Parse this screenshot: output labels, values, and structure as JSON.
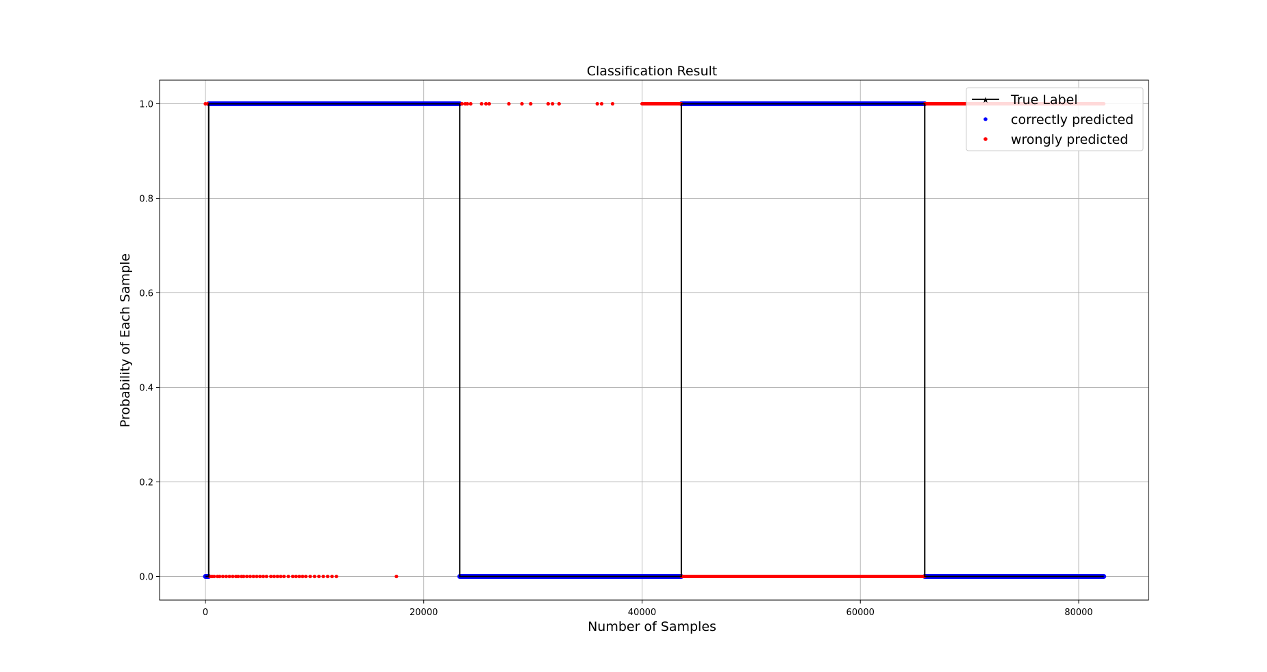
{
  "chart_data": {
    "type": "scatter",
    "title": "Classification Result",
    "xlabel": "Number of Samples",
    "ylabel": "Probability of Each Sample",
    "xlim": [
      -4200,
      86400
    ],
    "ylim": [
      -0.05,
      1.05
    ],
    "grid": true,
    "legend_position": "top-right",
    "xticks": [
      0,
      20000,
      40000,
      60000,
      80000
    ],
    "xtick_labels": [
      "0",
      "20000",
      "40000",
      "60000",
      "80000"
    ],
    "yticks": [
      0.0,
      0.2,
      0.4,
      0.6,
      0.8,
      1.0
    ],
    "ytick_labels": [
      "0.0",
      "0.2",
      "0.4",
      "0.6",
      "0.8",
      "1.0"
    ],
    "legend": [
      {
        "label": "True Label",
        "color": "#000000",
        "marker": "line-star"
      },
      {
        "label": "correctly predicted",
        "color": "#0000ff",
        "marker": "dot"
      },
      {
        "label": "wrongly predicted",
        "color": "#ff0000",
        "marker": "dot"
      }
    ],
    "series": [
      {
        "name": "True Label",
        "color": "#000000",
        "kind": "step-line",
        "x": [
          0,
          300,
          300,
          23300,
          23300,
          43600,
          43600,
          65900,
          65900,
          82300
        ],
        "y": [
          0,
          0,
          1,
          1,
          0,
          0,
          1,
          1,
          0,
          0
        ]
      },
      {
        "name": "correctly predicted",
        "color": "#0000ff",
        "kind": "dense-band",
        "segments": [
          {
            "x_start": 0,
            "x_end": 300,
            "y": 0
          },
          {
            "x_start": 300,
            "x_end": 23300,
            "y": 1
          },
          {
            "x_start": 23300,
            "x_end": 43600,
            "y": 0
          },
          {
            "x_start": 43600,
            "x_end": 65900,
            "y": 1
          },
          {
            "x_start": 65900,
            "x_end": 82300,
            "y": 0
          }
        ]
      },
      {
        "name": "wrongly predicted",
        "color": "#ff0000",
        "kind": "points",
        "dense_segments": [
          {
            "x_start": 40000,
            "x_end": 43600,
            "y": 1
          },
          {
            "x_start": 43600,
            "x_end": 54000,
            "y": 0
          },
          {
            "x_start": 54000,
            "x_end": 65900,
            "y": 0
          },
          {
            "x_start": 65900,
            "x_end": 82300,
            "y": 1
          }
        ],
        "x": [
          0,
          200,
          400,
          600,
          800,
          1100,
          1300,
          1600,
          1900,
          2200,
          2500,
          2800,
          3000,
          3300,
          3500,
          3800,
          4100,
          4400,
          4700,
          5000,
          5300,
          5600,
          6000,
          6300,
          6600,
          6900,
          7200,
          7600,
          8000,
          8300,
          8600,
          8900,
          9200,
          9600,
          10000,
          10400,
          10800,
          11200,
          11600,
          12000,
          17500,
          23500,
          23800,
          24000,
          24300,
          25300,
          25700,
          26000,
          27800,
          29000,
          29800,
          31400,
          31800,
          32400,
          35900,
          36300,
          37300
        ],
        "y": [
          1,
          1,
          0,
          0,
          0,
          0,
          0,
          0,
          0,
          0,
          0,
          0,
          0,
          0,
          0,
          0,
          0,
          0,
          0,
          0,
          0,
          0,
          0,
          0,
          0,
          0,
          0,
          0,
          0,
          0,
          0,
          0,
          0,
          0,
          0,
          0,
          0,
          0,
          0,
          0,
          0,
          1,
          1,
          1,
          1,
          1,
          1,
          1,
          1,
          1,
          1,
          1,
          1,
          1,
          1,
          1,
          1
        ]
      }
    ]
  }
}
